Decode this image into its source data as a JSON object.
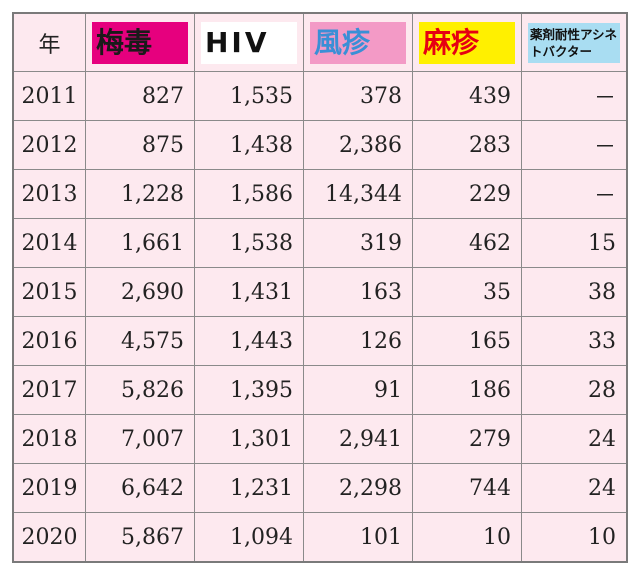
{
  "table": {
    "headers": {
      "year": "年",
      "syphilis": "梅毒",
      "hiv": "HIV",
      "rubella": "風疹",
      "measles": "麻疹",
      "acinetobacter": "薬剤耐性アシネトバクター"
    },
    "rows": [
      {
        "year": "2011",
        "syphilis": "827",
        "hiv": "1,535",
        "rubella": "378",
        "measles": "439",
        "acinetobacter": "－"
      },
      {
        "year": "2012",
        "syphilis": "875",
        "hiv": "1,438",
        "rubella": "2,386",
        "measles": "283",
        "acinetobacter": "－"
      },
      {
        "year": "2013",
        "syphilis": "1,228",
        "hiv": "1,586",
        "rubella": "14,344",
        "measles": "229",
        "acinetobacter": "－"
      },
      {
        "year": "2014",
        "syphilis": "1,661",
        "hiv": "1,538",
        "rubella": "319",
        "measles": "462",
        "acinetobacter": "15"
      },
      {
        "year": "2015",
        "syphilis": "2,690",
        "hiv": "1,431",
        "rubella": "163",
        "measles": "35",
        "acinetobacter": "38"
      },
      {
        "year": "2016",
        "syphilis": "4,575",
        "hiv": "1,443",
        "rubella": "126",
        "measles": "165",
        "acinetobacter": "33"
      },
      {
        "year": "2017",
        "syphilis": "5,826",
        "hiv": "1,395",
        "rubella": "91",
        "measles": "186",
        "acinetobacter": "28"
      },
      {
        "year": "2018",
        "syphilis": "7,007",
        "hiv": "1,301",
        "rubella": "2,941",
        "measles": "279",
        "acinetobacter": "24"
      },
      {
        "year": "2019",
        "syphilis": "6,642",
        "hiv": "1,231",
        "rubella": "2,298",
        "measles": "744",
        "acinetobacter": "24"
      },
      {
        "year": "2020",
        "syphilis": "5,867",
        "hiv": "1,094",
        "rubella": "101",
        "measles": "10",
        "acinetobacter": "10"
      }
    ]
  },
  "colors": {
    "table_background": "#fde9ef",
    "syphilis_label_bg": "#e6007e",
    "hiv_label_bg": "#ffffff",
    "rubella_label_bg": "#f39ac6",
    "rubella_label_text": "#3a8fd6",
    "measles_label_bg": "#fff000",
    "measles_label_text": "#e60012",
    "acinetobacter_label_bg": "#a9ddf2"
  }
}
